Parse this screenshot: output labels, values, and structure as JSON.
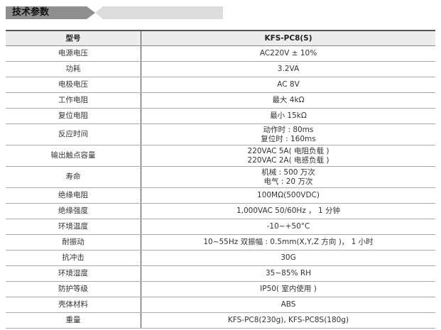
{
  "title": "技术参数",
  "header": {
    "key": "型号",
    "value": "KFS-PC8(S)"
  },
  "rows": [
    {
      "key": "电源电压",
      "lines": [
        "AC220V ± 10%"
      ]
    },
    {
      "key": "功耗",
      "lines": [
        "3.2VA"
      ]
    },
    {
      "key": "电极电压",
      "lines": [
        "AC 8V"
      ]
    },
    {
      "key": "工作电阻",
      "lines": [
        "最大 4kΩ"
      ]
    },
    {
      "key": "复位电阻",
      "lines": [
        "最小 15kΩ"
      ]
    },
    {
      "key": "反应时间",
      "lines": [
        "动作时 : 80ms",
        "复位时 : 160ms"
      ]
    },
    {
      "key": "输出触点容量",
      "lines": [
        "220VAC 5A( 电阻负载 )",
        "220VAC 2A( 电感负载 )"
      ]
    },
    {
      "key": "寿命",
      "lines": [
        "机械 : 500 万次",
        "电气 : 20 万次"
      ]
    },
    {
      "key": "绝缘电阻",
      "lines": [
        "100MΩ(500VDC)"
      ]
    },
    {
      "key": "绝缘强度",
      "lines": [
        "1,000VAC 50/60Hz ， 1 分钟"
      ]
    },
    {
      "key": "环境温度",
      "lines": [
        "-10~+50°C"
      ]
    },
    {
      "key": "耐振动",
      "lines": [
        "10~55Hz 双振幅 : 0.5mm(X,Y,Z 方向 )， 1 小时"
      ]
    },
    {
      "key": "抗冲击",
      "lines": [
        "30G"
      ]
    },
    {
      "key": "环境湿度",
      "lines": [
        "35~85% RH"
      ]
    },
    {
      "key": "防护等级",
      "lines": [
        "IP50( 室内使用 )"
      ]
    },
    {
      "key": "壳体材料",
      "lines": [
        "ABS"
      ]
    },
    {
      "key": "重量",
      "lines": [
        "KFS-PC8(230g), KFS-PC8S(180g)"
      ]
    }
  ]
}
